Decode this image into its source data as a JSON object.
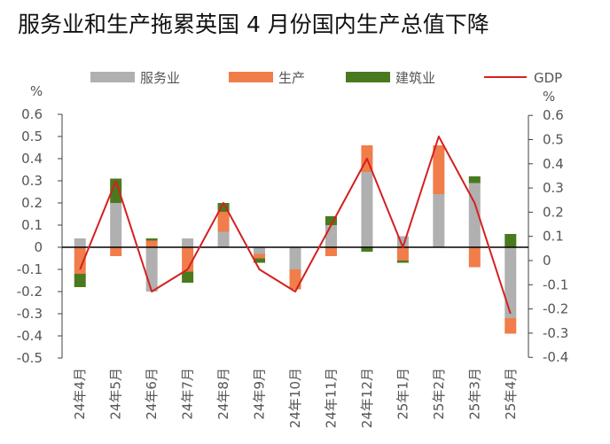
{
  "chart_data": {
    "type": "bar",
    "title": "服务业和生产拖累英国 4 月份国内生产总值下降",
    "y_unit_left": "%",
    "y_unit_right": "%",
    "categories": [
      "24年4月",
      "24年5月",
      "24年6月",
      "24年7月",
      "24年8月",
      "24年9月",
      "24年10月",
      "24年11月",
      "24年12月",
      "25年1月",
      "25年2月",
      "25年3月",
      "25年4月"
    ],
    "ylim": [
      -0.5,
      0.6
    ],
    "ylim_right": [
      -0.4,
      0.6
    ],
    "y_ticks_left": [
      "0.6",
      "0.5",
      "0.4",
      "0.3",
      "0.2",
      "0.1",
      "0",
      "-0.1",
      "-0.2",
      "-0.3",
      "-0.4",
      "-0.5"
    ],
    "y_ticks_right": [
      "0.6",
      "0.5",
      "0.4",
      "0.3",
      "0.2",
      "0.1",
      "0",
      "-0.1",
      "-0.2",
      "-0.3",
      "-0.4"
    ],
    "stacked": true,
    "series": [
      {
        "name": "服务业",
        "type": "bar",
        "color": "#b0b0b0",
        "values": [
          0.04,
          0.2,
          -0.2,
          0.04,
          0.07,
          -0.03,
          -0.1,
          0.1,
          0.34,
          0.05,
          0.24,
          0.29,
          -0.32
        ]
      },
      {
        "name": "生产",
        "type": "bar",
        "color": "#f07d4a",
        "values": [
          -0.12,
          -0.04,
          0.03,
          -0.11,
          0.09,
          -0.02,
          -0.09,
          -0.04,
          0.12,
          -0.06,
          0.22,
          -0.09,
          -0.07
        ]
      },
      {
        "name": "建筑业",
        "type": "bar",
        "color": "#4a7a1e",
        "values": [
          -0.06,
          0.11,
          0.01,
          -0.05,
          0.04,
          -0.02,
          0.0,
          0.04,
          -0.02,
          -0.01,
          0.0,
          0.03,
          0.06
        ]
      },
      {
        "name": "GDP",
        "type": "line",
        "color": "#d42020",
        "values": [
          -0.1,
          0.3,
          -0.2,
          -0.1,
          0.2,
          -0.1,
          -0.2,
          0.1,
          0.4,
          0.0,
          0.5,
          0.2,
          -0.3
        ]
      }
    ],
    "legend": {
      "placement": "top"
    },
    "grid": false
  }
}
